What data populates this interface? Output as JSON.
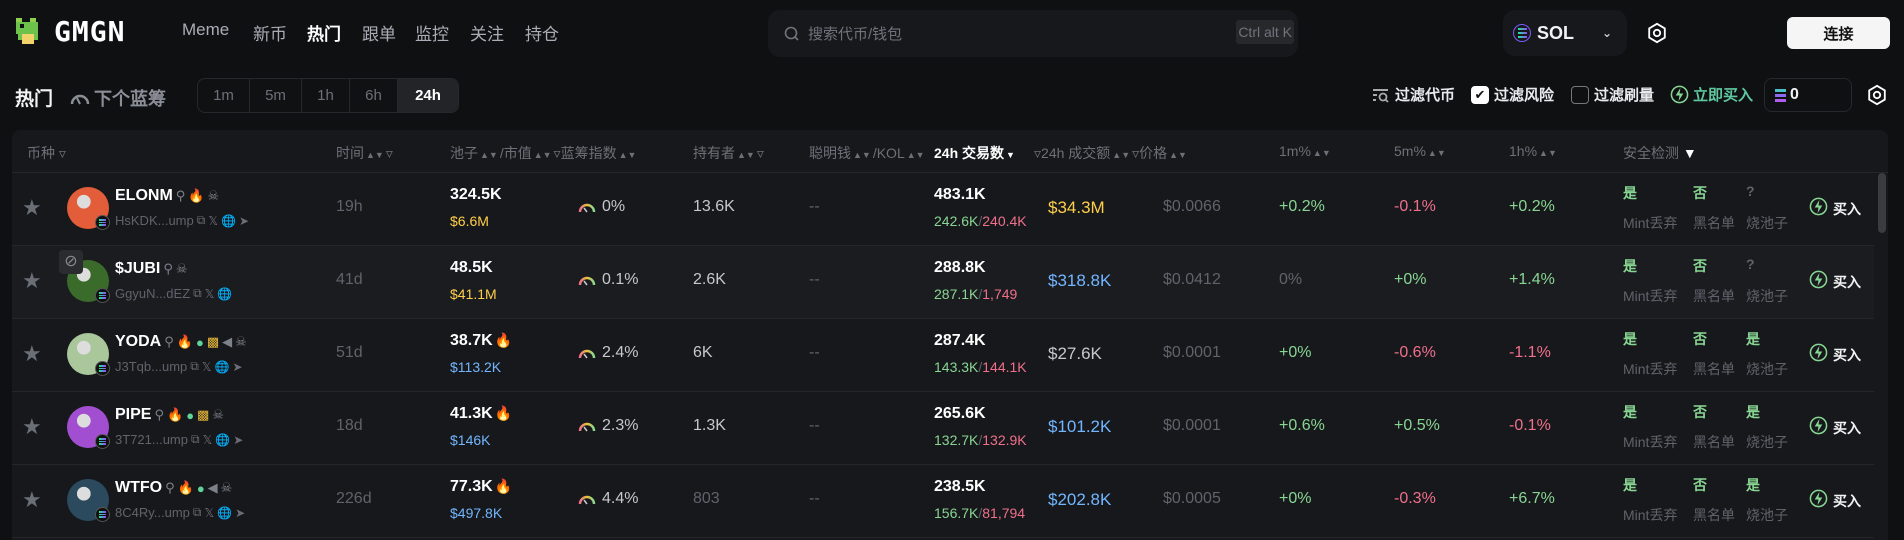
{
  "header": {
    "brand": "GMGN",
    "nav": [
      {
        "label": "Meme"
      },
      {
        "label": "新币"
      },
      {
        "label": "热门",
        "active": true
      },
      {
        "label": "跟单"
      },
      {
        "label": "监控"
      },
      {
        "label": "关注"
      },
      {
        "label": "持仓"
      }
    ],
    "search_placeholder": "搜索代币/钱包",
    "search_shortcut": "Ctrl alt K",
    "chain": "SOL",
    "connect_label": "连接"
  },
  "toolbar": {
    "title": "热门",
    "next_bluechip": "下个蓝筹",
    "timeframes": [
      {
        "label": "1m"
      },
      {
        "label": "5m"
      },
      {
        "label": "1h"
      },
      {
        "label": "6h"
      },
      {
        "label": "24h",
        "active": true
      }
    ],
    "filter_tokens": "过滤代币",
    "filter_risk": "过滤风险",
    "filter_risk_checked": true,
    "filter_wash": "过滤刷量",
    "filter_wash_checked": false,
    "quick_buy": "立即买入",
    "quick_buy_amount": "0"
  },
  "colors": {
    "green": "#88d693",
    "red": "#f0708c",
    "yellow": "#ffcf4a",
    "blue": "#72b6ff",
    "bg": "#0f1012",
    "panel": "#17181b"
  },
  "table": {
    "columns": {
      "token": "币种",
      "age": "时间",
      "pool": "池子",
      "mcap": "/市值",
      "bluechip": "蓝筹指数",
      "holders": "持有者",
      "smart": "聪明钱",
      "kol": "/KOL",
      "txs": "24h 交易数",
      "volume": "24h 成交额",
      "price": "价格",
      "m1": "1m%",
      "m5": "5m%",
      "h1": "1h%",
      "safety": "安全检测"
    },
    "safety_labels": [
      "Mint丢弃",
      "黑名单",
      "烧池子"
    ],
    "buy_label": "买入",
    "rows": [
      {
        "symbol": "ELONM",
        "address": "HsKDK...ump",
        "badges": [
          "search",
          "fire",
          "devil"
        ],
        "links": [
          "copy",
          "x",
          "web",
          "telegram"
        ],
        "avatar": "#e35d3a",
        "age": "19h",
        "pool": "324.5K",
        "pool_hot": false,
        "mcap": "$6.6M",
        "mcap_tone": "y",
        "bluechip": "0%",
        "holders": "13.6K",
        "holders_tone": "l",
        "smart": "--",
        "txs": "483.1K",
        "buys": "242.6K",
        "sells": "240.4K",
        "volume": "$34.3M",
        "volume_tone": "y",
        "price": "$0.0066",
        "m1": "+0.2%",
        "m1_tone": "g",
        "m5": "-0.1%",
        "m5_tone": "r",
        "h1": "+0.2%",
        "h1_tone": "g",
        "safety": [
          "是",
          "否",
          "?"
        ]
      },
      {
        "symbol": "$JUBI",
        "address": "GgyuN...dEZ",
        "badges": [
          "search",
          "devil"
        ],
        "links": [
          "copy",
          "x",
          "web"
        ],
        "avatar": "#3a6b2a",
        "hidden": true,
        "age": "41d",
        "pool": "48.5K",
        "pool_hot": false,
        "mcap": "$41.1M",
        "mcap_tone": "y",
        "bluechip": "0.1%",
        "holders": "2.6K",
        "holders_tone": "l",
        "smart": "--",
        "txs": "288.8K",
        "buys": "287.1K",
        "sells": "1,749",
        "volume": "$318.8K",
        "volume_tone": "b",
        "price": "$0.0412",
        "m1": "0%",
        "m1_tone": "d",
        "m5": "+0%",
        "m5_tone": "g",
        "h1": "+1.4%",
        "h1_tone": "g",
        "safety": [
          "是",
          "否",
          "?"
        ]
      },
      {
        "symbol": "YODA",
        "address": "J3Tqb...ump",
        "badges": [
          "search",
          "fire",
          "pill",
          "people",
          "megaphone",
          "devil"
        ],
        "links": [
          "copy",
          "x",
          "web",
          "telegram"
        ],
        "avatar": "#a9c79a",
        "age": "51d",
        "pool": "38.7K",
        "pool_hot": true,
        "mcap": "$113.2K",
        "mcap_tone": "b",
        "bluechip": "2.4%",
        "holders": "6K",
        "holders_tone": "l",
        "smart": "--",
        "txs": "287.4K",
        "buys": "143.3K",
        "sells": "144.1K",
        "volume": "$27.6K",
        "volume_tone": "l",
        "price": "$0.0001",
        "m1": "+0%",
        "m1_tone": "g",
        "m5": "-0.6%",
        "m5_tone": "r",
        "h1": "-1.1%",
        "h1_tone": "r",
        "safety": [
          "是",
          "否",
          "是"
        ]
      },
      {
        "symbol": "PIPE",
        "address": "3T721...ump",
        "badges": [
          "search",
          "fire",
          "pill",
          "people",
          "devil"
        ],
        "links": [
          "copy",
          "x",
          "web",
          "telegram"
        ],
        "avatar": "#a14fd0",
        "age": "18d",
        "pool": "41.3K",
        "pool_hot": true,
        "mcap": "$146K",
        "mcap_tone": "b",
        "bluechip": "2.3%",
        "holders": "1.3K",
        "holders_tone": "l",
        "smart": "--",
        "txs": "265.6K",
        "buys": "132.7K",
        "sells": "132.9K",
        "volume": "$101.2K",
        "volume_tone": "b",
        "price": "$0.0001",
        "m1": "+0.6%",
        "m1_tone": "g",
        "m5": "+0.5%",
        "m5_tone": "g",
        "h1": "-0.1%",
        "h1_tone": "r",
        "safety": [
          "是",
          "否",
          "是"
        ]
      },
      {
        "symbol": "WTFO",
        "address": "8C4Ry...ump",
        "badges": [
          "search",
          "fire",
          "pill",
          "megaphone",
          "devil"
        ],
        "links": [
          "copy",
          "x",
          "web",
          "telegram"
        ],
        "avatar": "#2b4a5e",
        "age": "226d",
        "pool": "77.3K",
        "pool_hot": true,
        "mcap": "$497.8K",
        "mcap_tone": "b",
        "bluechip": "4.4%",
        "holders": "803",
        "holders_tone": "d",
        "smart": "--",
        "txs": "238.5K",
        "buys": "156.7K",
        "sells": "81,794",
        "volume": "$202.8K",
        "volume_tone": "b",
        "price": "$0.0005",
        "m1": "+0%",
        "m1_tone": "g",
        "m5": "-0.3%",
        "m5_tone": "r",
        "h1": "+6.7%",
        "h1_tone": "g",
        "safety": [
          "是",
          "否",
          "是"
        ]
      }
    ]
  }
}
